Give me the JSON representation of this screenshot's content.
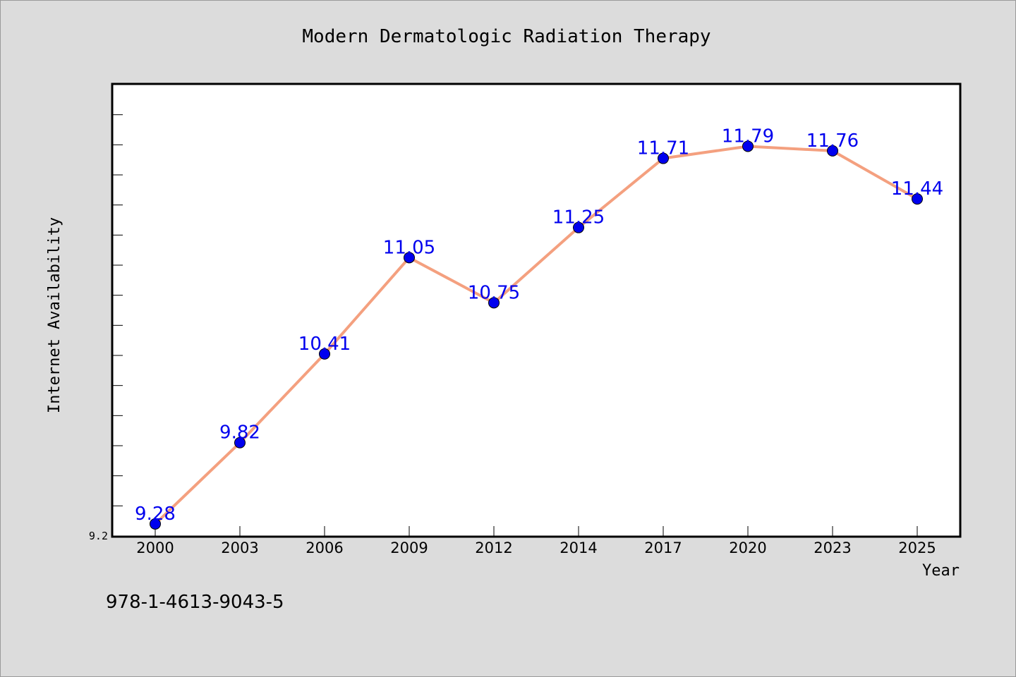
{
  "chart_data": {
    "type": "line",
    "title": "Modern Dermatologic Radiation Therapy",
    "xlabel": "Year",
    "ylabel": "Internet Availability",
    "categories": [
      "2000",
      "2003",
      "2006",
      "2009",
      "2012",
      "2014",
      "2017",
      "2020",
      "2023",
      "2025"
    ],
    "series": [
      {
        "values": [
          9.28,
          9.82,
          10.41,
          11.05,
          10.75,
          11.25,
          11.71,
          11.79,
          11.76,
          11.44
        ],
        "labels": [
          "9.28",
          "9.82",
          "10.41",
          "11.05",
          "10.75",
          "11.25",
          "11.71",
          "11.79",
          "11.76",
          "11.44"
        ]
      }
    ],
    "ylim": [
      9.2,
      12.2
    ],
    "y_tick_label": "9.2",
    "grid": false,
    "line_color": "#f4a07f",
    "marker_color": "#0000ee",
    "label_color": "#0000ee"
  },
  "footer": {
    "isbn": "978-1-4613-9043-5"
  }
}
